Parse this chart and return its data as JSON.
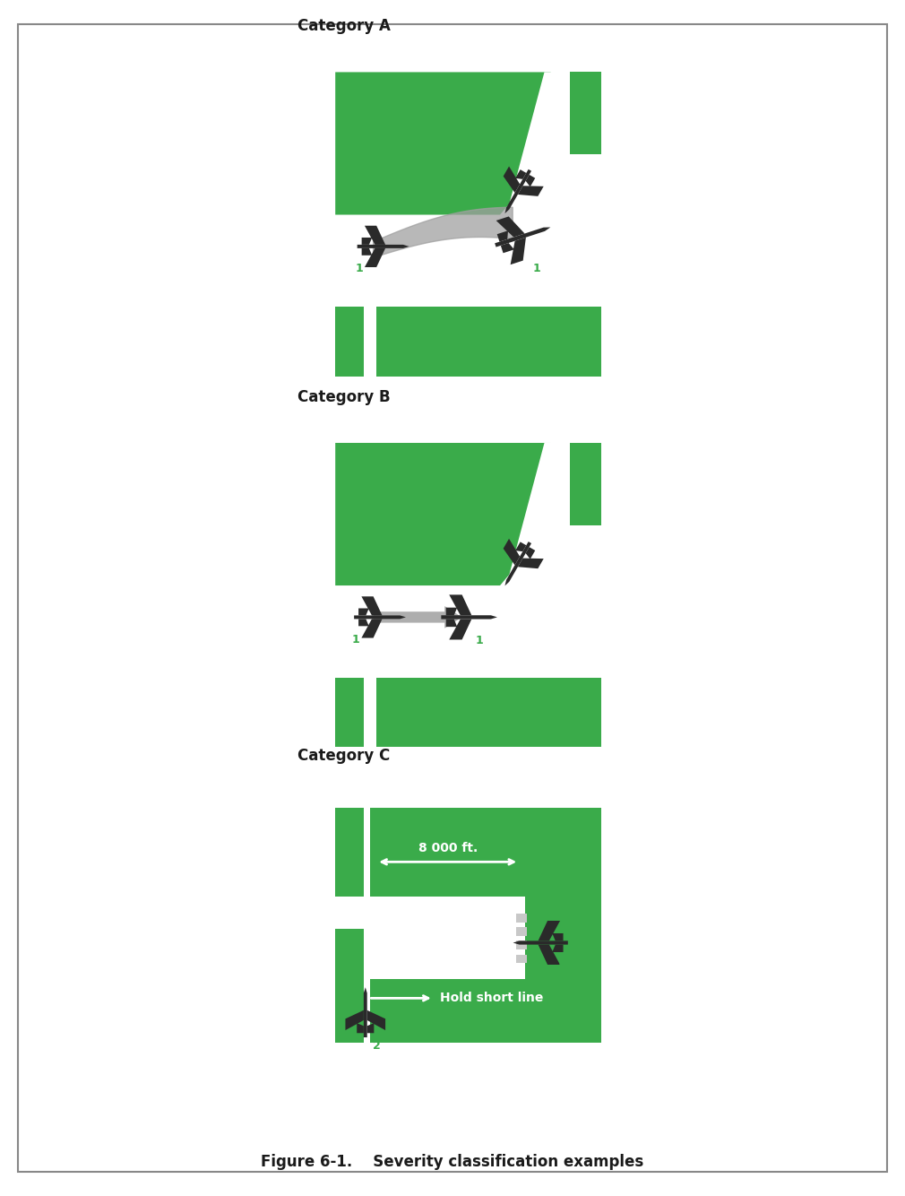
{
  "green": "#3aab4a",
  "white": "#ffffff",
  "gray_trail": "#a0a0a0",
  "black": "#1a1a1a",
  "light_gray": "#c8c8c8",
  "fig_width": 10.1,
  "fig_height": 13.34,
  "categories": [
    "Category A",
    "Category B",
    "Category C"
  ],
  "caption": "Figure 6-1.    Severity classification examples",
  "distance_label": "8 000 ft.",
  "hold_short_label": "Hold short line",
  "border_color": "#888888"
}
